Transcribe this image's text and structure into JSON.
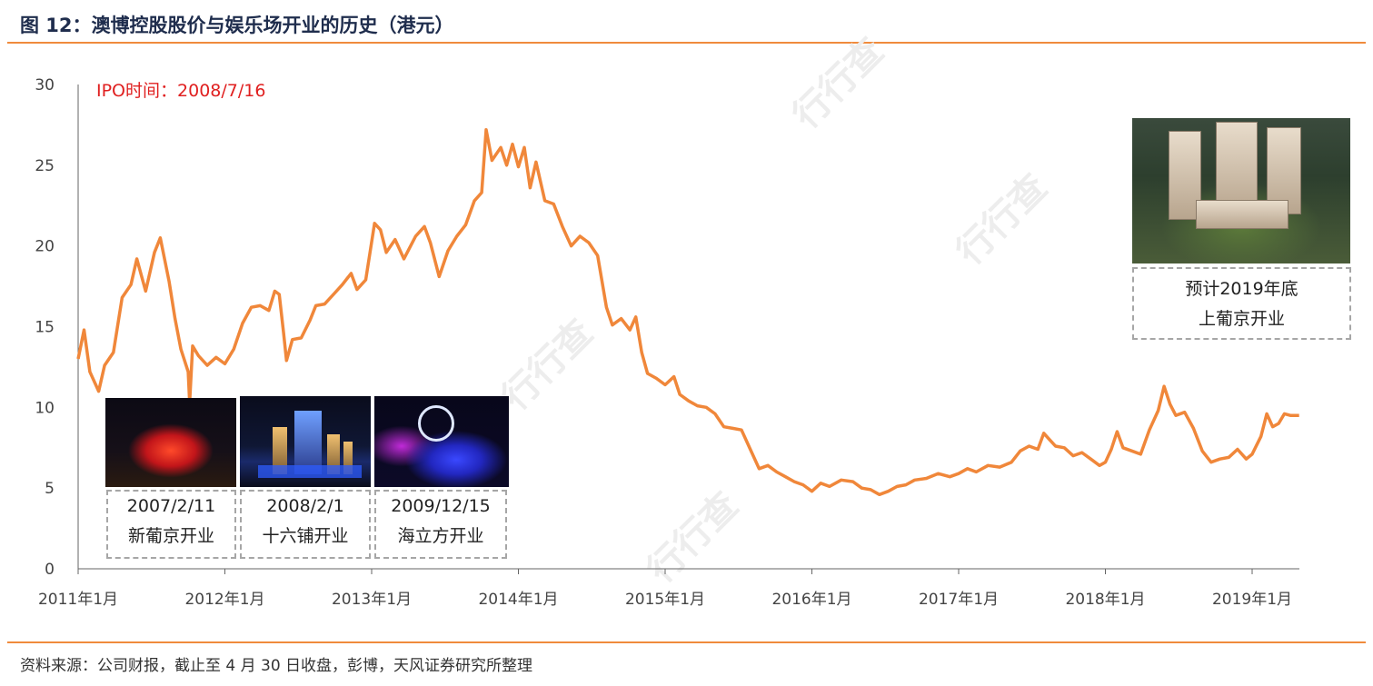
{
  "title": "图 12：澳博控股股价与娱乐场开业的历史（港元）",
  "source": "资料来源：公司财报，截止至 4 月 30 日收盘，彭博，天风证券研究所整理",
  "ipo_label": "IPO时间：2008/7/16",
  "watermark": "行行查",
  "accent_color": "#f08b3c",
  "line_color": "#f0873a",
  "events": [
    {
      "date": "2007/2/11",
      "text": "新葡京开业"
    },
    {
      "date": "2008/2/1",
      "text": "十六铺开业"
    },
    {
      "date": "2009/12/15",
      "text": "海立方开业"
    }
  ],
  "future_event": {
    "line1": "预计2019年底",
    "line2": "上葡京开业"
  },
  "chart_data": {
    "type": "line",
    "title": "图 12：澳博控股股价与娱乐场开业的历史（港元）",
    "xlabel": "",
    "ylabel": "",
    "ylim": [
      0,
      30
    ],
    "xlim": [
      2011.0,
      2019.33
    ],
    "yticks": [
      0,
      5,
      10,
      15,
      20,
      25,
      30
    ],
    "xtick_labels": [
      "2011年1月",
      "2012年1月",
      "2013年1月",
      "2014年1月",
      "2015年1月",
      "2016年1月",
      "2017年1月",
      "2018年1月",
      "2019年1月"
    ],
    "xtick_values": [
      2011,
      2012,
      2013,
      2014,
      2015,
      2016,
      2017,
      2018,
      2019
    ],
    "grid": false,
    "legend": "none",
    "series": [
      {
        "points": [
          [
            2011.0,
            13.0
          ],
          [
            2011.04,
            14.8
          ],
          [
            2011.08,
            12.2
          ],
          [
            2011.14,
            11.0
          ],
          [
            2011.18,
            12.6
          ],
          [
            2011.24,
            13.4
          ],
          [
            2011.3,
            16.8
          ],
          [
            2011.36,
            17.6
          ],
          [
            2011.4,
            19.2
          ],
          [
            2011.46,
            17.2
          ],
          [
            2011.52,
            19.6
          ],
          [
            2011.56,
            20.5
          ],
          [
            2011.62,
            17.8
          ],
          [
            2011.66,
            15.5
          ],
          [
            2011.7,
            13.6
          ],
          [
            2011.75,
            12.2
          ],
          [
            2011.76,
            10.3
          ],
          [
            2011.78,
            13.8
          ],
          [
            2011.82,
            13.2
          ],
          [
            2011.88,
            12.6
          ],
          [
            2011.94,
            13.1
          ],
          [
            2012.0,
            12.7
          ],
          [
            2012.06,
            13.6
          ],
          [
            2012.12,
            15.2
          ],
          [
            2012.18,
            16.2
          ],
          [
            2012.24,
            16.3
          ],
          [
            2012.3,
            16.0
          ],
          [
            2012.34,
            17.2
          ],
          [
            2012.37,
            17.0
          ],
          [
            2012.4,
            14.6
          ],
          [
            2012.42,
            12.9
          ],
          [
            2012.46,
            14.2
          ],
          [
            2012.52,
            14.3
          ],
          [
            2012.58,
            15.4
          ],
          [
            2012.62,
            16.3
          ],
          [
            2012.68,
            16.4
          ],
          [
            2012.74,
            17.0
          ],
          [
            2012.8,
            17.6
          ],
          [
            2012.86,
            18.3
          ],
          [
            2012.9,
            17.3
          ],
          [
            2012.96,
            17.9
          ],
          [
            2013.02,
            21.4
          ],
          [
            2013.06,
            21.0
          ],
          [
            2013.1,
            19.6
          ],
          [
            2013.16,
            20.4
          ],
          [
            2013.22,
            19.2
          ],
          [
            2013.3,
            20.6
          ],
          [
            2013.36,
            21.2
          ],
          [
            2013.4,
            20.2
          ],
          [
            2013.46,
            18.1
          ],
          [
            2013.52,
            19.7
          ],
          [
            2013.58,
            20.6
          ],
          [
            2013.64,
            21.3
          ],
          [
            2013.7,
            22.8
          ],
          [
            2013.75,
            23.3
          ],
          [
            2013.78,
            27.2
          ],
          [
            2013.82,
            25.3
          ],
          [
            2013.88,
            26.1
          ],
          [
            2013.92,
            25.0
          ],
          [
            2013.96,
            26.3
          ],
          [
            2014.0,
            24.9
          ],
          [
            2014.04,
            26.1
          ],
          [
            2014.08,
            23.6
          ],
          [
            2014.12,
            25.2
          ],
          [
            2014.18,
            22.8
          ],
          [
            2014.24,
            22.6
          ],
          [
            2014.3,
            21.2
          ],
          [
            2014.36,
            20.0
          ],
          [
            2014.42,
            20.6
          ],
          [
            2014.48,
            20.2
          ],
          [
            2014.54,
            19.4
          ],
          [
            2014.6,
            16.2
          ],
          [
            2014.64,
            15.1
          ],
          [
            2014.7,
            15.5
          ],
          [
            2014.76,
            14.8
          ],
          [
            2014.8,
            15.6
          ],
          [
            2014.84,
            13.4
          ],
          [
            2014.88,
            12.1
          ],
          [
            2014.94,
            11.8
          ],
          [
            2015.0,
            11.4
          ],
          [
            2015.06,
            11.9
          ],
          [
            2015.1,
            10.8
          ],
          [
            2015.16,
            10.4
          ],
          [
            2015.22,
            10.1
          ],
          [
            2015.28,
            10.0
          ],
          [
            2015.34,
            9.6
          ],
          [
            2015.4,
            8.8
          ],
          [
            2015.46,
            8.7
          ],
          [
            2015.52,
            8.6
          ],
          [
            2015.58,
            7.4
          ],
          [
            2015.64,
            6.2
          ],
          [
            2015.7,
            6.4
          ],
          [
            2015.76,
            6.0
          ],
          [
            2015.82,
            5.7
          ],
          [
            2015.88,
            5.4
          ],
          [
            2015.94,
            5.2
          ],
          [
            2016.0,
            4.8
          ],
          [
            2016.06,
            5.3
          ],
          [
            2016.12,
            5.1
          ],
          [
            2016.2,
            5.5
          ],
          [
            2016.28,
            5.4
          ],
          [
            2016.34,
            5.0
          ],
          [
            2016.4,
            4.9
          ],
          [
            2016.46,
            4.6
          ],
          [
            2016.52,
            4.8
          ],
          [
            2016.58,
            5.1
          ],
          [
            2016.64,
            5.2
          ],
          [
            2016.7,
            5.5
          ],
          [
            2016.78,
            5.6
          ],
          [
            2016.86,
            5.9
          ],
          [
            2016.94,
            5.7
          ],
          [
            2017.0,
            5.9
          ],
          [
            2017.06,
            6.2
          ],
          [
            2017.12,
            6.0
          ],
          [
            2017.2,
            6.4
          ],
          [
            2017.28,
            6.3
          ],
          [
            2017.36,
            6.6
          ],
          [
            2017.42,
            7.3
          ],
          [
            2017.48,
            7.6
          ],
          [
            2017.54,
            7.4
          ],
          [
            2017.58,
            8.4
          ],
          [
            2017.62,
            8.0
          ],
          [
            2017.66,
            7.6
          ],
          [
            2017.72,
            7.5
          ],
          [
            2017.78,
            7.0
          ],
          [
            2017.84,
            7.2
          ],
          [
            2017.9,
            6.8
          ],
          [
            2017.96,
            6.4
          ],
          [
            2018.0,
            6.6
          ],
          [
            2018.04,
            7.4
          ],
          [
            2018.08,
            8.5
          ],
          [
            2018.12,
            7.5
          ],
          [
            2018.18,
            7.3
          ],
          [
            2018.24,
            7.1
          ],
          [
            2018.3,
            8.6
          ],
          [
            2018.36,
            9.8
          ],
          [
            2018.4,
            11.3
          ],
          [
            2018.44,
            10.2
          ],
          [
            2018.48,
            9.5
          ],
          [
            2018.54,
            9.7
          ],
          [
            2018.6,
            8.7
          ],
          [
            2018.66,
            7.3
          ],
          [
            2018.72,
            6.6
          ],
          [
            2018.78,
            6.8
          ],
          [
            2018.84,
            6.9
          ],
          [
            2018.9,
            7.4
          ],
          [
            2018.96,
            6.8
          ],
          [
            2019.0,
            7.1
          ],
          [
            2019.06,
            8.2
          ],
          [
            2019.1,
            9.6
          ],
          [
            2019.14,
            8.8
          ],
          [
            2019.18,
            9.0
          ],
          [
            2019.22,
            9.6
          ],
          [
            2019.26,
            9.5
          ],
          [
            2019.32,
            9.5
          ]
        ]
      }
    ]
  }
}
